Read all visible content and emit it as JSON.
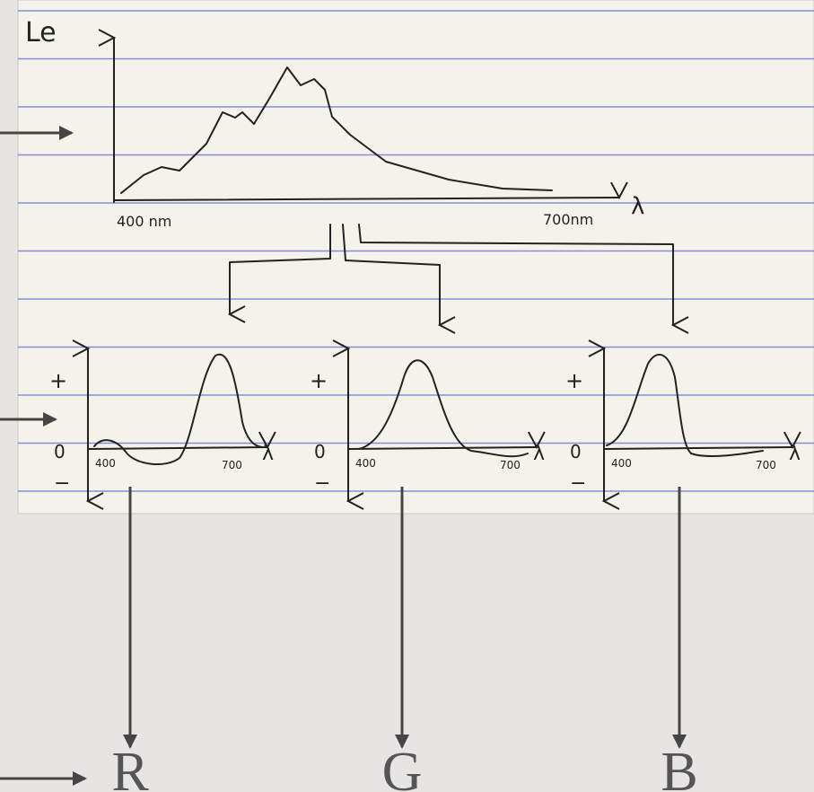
{
  "spectrum": {
    "y_label": "Le",
    "x_start": "400 nm",
    "x_end": "700nm",
    "x_symbol": "λ"
  },
  "filters": [
    {
      "plus": "+",
      "zero": "0",
      "minus": "−",
      "x_start": "400",
      "x_end": "700",
      "x_symbol": "λ"
    },
    {
      "plus": "+",
      "zero": "0",
      "minus": "−",
      "x_start": "400",
      "x_end": "700",
      "x_symbol": "λ"
    },
    {
      "plus": "+",
      "zero": "0",
      "minus": "−",
      "x_start": "400",
      "x_end": "700",
      "x_symbol": "λ"
    }
  ],
  "outputs": [
    "R",
    "G",
    "B"
  ]
}
